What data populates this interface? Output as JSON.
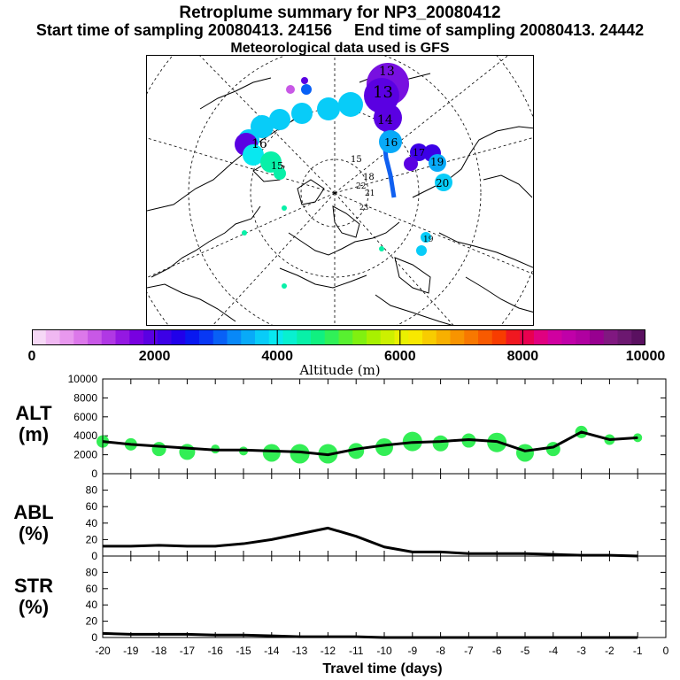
{
  "title": {
    "line1": "Retroplume summary for NP3_20080412",
    "start": "Start time of sampling 20080413. 24156",
    "end": "End time of sampling 20080413. 24442",
    "line3": "Meteorological data used is GFS"
  },
  "map": {
    "day_labels": [
      "13",
      "13",
      "14",
      "15",
      "16",
      "17",
      "18",
      "19",
      "20",
      "21",
      "22",
      "23",
      "19",
      "15",
      "16"
    ]
  },
  "colorbar": {
    "tick_labels": [
      "0",
      "2000",
      "4000",
      "6000",
      "8000",
      "10000"
    ],
    "axis_label": "Altitude (m)",
    "colors": [
      "#f6d8f6",
      "#f0b8f2",
      "#e898ee",
      "#dc78ea",
      "#c858e6",
      "#b038e4",
      "#9418e2",
      "#7800e0",
      "#5a00e2",
      "#3c00e6",
      "#2000ea",
      "#0818f0",
      "#0838f4",
      "#0860f6",
      "#0888f8",
      "#08aaf8",
      "#08ccf8",
      "#08e8f0",
      "#08f0d0",
      "#08f0a8",
      "#10f080",
      "#30f058",
      "#58f030",
      "#80f010",
      "#a8f000",
      "#ccf000",
      "#eaf000",
      "#f8e800",
      "#f8cc00",
      "#f8b000",
      "#f89400",
      "#f87800",
      "#f85a00",
      "#f83c00",
      "#f01820",
      "#e80050",
      "#e00080",
      "#d000a0",
      "#c000a8",
      "#b000a0",
      "#980090",
      "#801880",
      "#6c1870",
      "#5a1060"
    ]
  },
  "chart_data": [
    {
      "type": "scatter",
      "panel_label": [
        "ALT",
        "(m)"
      ],
      "ylabel": "ALT (m)",
      "ylim": [
        0,
        10000
      ],
      "y_ticks": [
        0,
        2000,
        4000,
        6000,
        8000,
        10000
      ],
      "y_tick_labels": [
        "0",
        "2000",
        "4000",
        "6000",
        "8000",
        "10000"
      ],
      "x": [
        -20,
        -19,
        -18,
        -17,
        -16,
        -15,
        -14,
        -13,
        -12,
        -11,
        -10,
        -9,
        -8,
        -7,
        -6,
        -5,
        -4,
        -3,
        -2,
        -1
      ],
      "line": [
        3400,
        3100,
        2900,
        2700,
        2500,
        2500,
        2400,
        2300,
        2000,
        2600,
        3000,
        3300,
        3400,
        3600,
        3400,
        2400,
        2800,
        4400,
        3600,
        3800
      ],
      "bubbles": [
        3400,
        3100,
        2600,
        2300,
        2600,
        2400,
        2200,
        2100,
        2100,
        2400,
        2800,
        3400,
        3200,
        3500,
        3300,
        2200,
        2600,
        4400,
        3600,
        3800
      ],
      "bubble_sizes": [
        7,
        7,
        8,
        9,
        5,
        5,
        10,
        11,
        11,
        9,
        10,
        11,
        9,
        8,
        11,
        10,
        8,
        7,
        6,
        5
      ]
    },
    {
      "type": "line",
      "panel_label": [
        "ABL",
        "(%)"
      ],
      "ylabel": "ABL (%)",
      "ylim": [
        0,
        100
      ],
      "y_ticks": [
        0,
        20,
        40,
        60,
        80
      ],
      "y_tick_labels": [
        "0",
        "20",
        "40",
        "60",
        "80"
      ],
      "x": [
        -20,
        -19,
        -18,
        -17,
        -16,
        -15,
        -14,
        -13,
        -12,
        -11,
        -10,
        -9,
        -8,
        -7,
        -6,
        -5,
        -4,
        -3,
        -2,
        -1
      ],
      "values": [
        12,
        12,
        13,
        12,
        12,
        15,
        20,
        27,
        34,
        24,
        11,
        5,
        5,
        3,
        3,
        3,
        2,
        1,
        1,
        0
      ]
    },
    {
      "type": "line",
      "panel_label": [
        "STR",
        "(%)"
      ],
      "ylabel": "STR (%)",
      "ylim": [
        0,
        100
      ],
      "y_ticks": [
        0,
        20,
        40,
        60,
        80
      ],
      "y_tick_labels": [
        "0",
        "20",
        "40",
        "60",
        "80"
      ],
      "x": [
        -20,
        -19,
        -18,
        -17,
        -16,
        -15,
        -14,
        -13,
        -12,
        -11,
        -10,
        -9,
        -8,
        -7,
        -6,
        -5,
        -4,
        -3,
        -2,
        -1
      ],
      "values": [
        5,
        4,
        4,
        4,
        3,
        3,
        2,
        1,
        1,
        1,
        0,
        0,
        0,
        0,
        0,
        0,
        0,
        0,
        0,
        0
      ]
    }
  ],
  "x_axis": {
    "tick_labels": [
      "-20",
      "-19",
      "-18",
      "-17",
      "-16",
      "-15",
      "-14",
      "-13",
      "-12",
      "-11",
      "-10",
      "-9",
      "-8",
      "-7",
      "-6",
      "-5",
      "-4",
      "-3",
      "-2",
      "-1",
      "0"
    ],
    "label": "Travel time (days)",
    "xlim": [
      -20,
      0
    ]
  },
  "colors": {
    "bubble": "#33ee55",
    "line": "#000000"
  }
}
